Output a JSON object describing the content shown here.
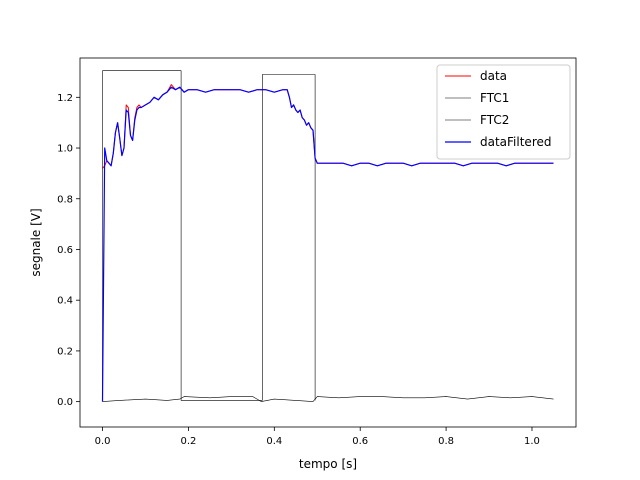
{
  "chart_data": {
    "type": "line",
    "xlabel": "tempo [s]",
    "ylabel": "segnale [V]",
    "xlim": [
      -0.0525,
      1.1025
    ],
    "ylim": [
      -0.1,
      1.355
    ],
    "xticks": [
      0.0,
      0.2,
      0.4,
      0.6,
      0.8,
      1.0
    ],
    "xtick_labels": [
      "0.0",
      "0.2",
      "0.4",
      "0.6",
      "0.8",
      "1.0"
    ],
    "yticks": [
      0.0,
      0.2,
      0.4,
      0.6,
      0.8,
      1.0,
      1.2
    ],
    "ytick_labels": [
      "0.0",
      "0.2",
      "0.4",
      "0.6",
      "0.8",
      "1.0",
      "1.2"
    ],
    "grid": false,
    "legend_position": "top-right",
    "series": [
      {
        "name": "data",
        "color": "#ff0000",
        "width": 1,
        "x": [
          0.0,
          0.005,
          0.01,
          0.015,
          0.02,
          0.025,
          0.03,
          0.035,
          0.04,
          0.045,
          0.05,
          0.055,
          0.06,
          0.065,
          0.07,
          0.075,
          0.08,
          0.085,
          0.09,
          0.1,
          0.11,
          0.12,
          0.13,
          0.14,
          0.15,
          0.16,
          0.17,
          0.18,
          0.19,
          0.2,
          0.22,
          0.24,
          0.26,
          0.28,
          0.3,
          0.32,
          0.34,
          0.36,
          0.38,
          0.4,
          0.42,
          0.43,
          0.435,
          0.44,
          0.445,
          0.45,
          0.455,
          0.46,
          0.465,
          0.47,
          0.475,
          0.48,
          0.485,
          0.49,
          0.495,
          0.5,
          0.52,
          0.54,
          0.56,
          0.58,
          0.6,
          0.62,
          0.64,
          0.66,
          0.68,
          0.7,
          0.72,
          0.74,
          0.76,
          0.78,
          0.8,
          0.82,
          0.84,
          0.86,
          0.88,
          0.9,
          0.92,
          0.94,
          0.96,
          0.98,
          1.0,
          1.02,
          1.04,
          1.05
        ],
        "y": [
          0.92,
          0.93,
          0.95,
          0.94,
          0.93,
          0.98,
          1.06,
          1.1,
          1.04,
          0.97,
          1.0,
          1.17,
          1.16,
          1.05,
          1.03,
          1.12,
          1.16,
          1.17,
          1.16,
          1.17,
          1.18,
          1.2,
          1.19,
          1.21,
          1.22,
          1.25,
          1.23,
          1.24,
          1.22,
          1.23,
          1.23,
          1.22,
          1.23,
          1.23,
          1.23,
          1.23,
          1.22,
          1.23,
          1.23,
          1.22,
          1.23,
          1.23,
          1.2,
          1.16,
          1.17,
          1.15,
          1.14,
          1.15,
          1.12,
          1.11,
          1.09,
          1.1,
          1.08,
          1.07,
          0.96,
          0.94,
          0.94,
          0.94,
          0.94,
          0.93,
          0.94,
          0.94,
          0.93,
          0.94,
          0.94,
          0.94,
          0.93,
          0.94,
          0.94,
          0.94,
          0.94,
          0.94,
          0.93,
          0.94,
          0.94,
          0.94,
          0.94,
          0.93,
          0.94,
          0.94,
          0.94,
          0.94,
          0.94,
          0.94
        ]
      },
      {
        "name": "FTC1",
        "color": "#000000",
        "width": 0.6,
        "x": [
          0.0,
          0.0,
          0.183,
          0.183,
          0.372,
          0.372,
          0.495,
          0.495
        ],
        "y": [
          0.005,
          1.305,
          1.305,
          0.005,
          0.005,
          1.29,
          1.29,
          0.005
        ]
      },
      {
        "name": "FTC2",
        "color": "#000000",
        "width": 0.6,
        "x": [
          0.0,
          0.04,
          0.1,
          0.15,
          0.18,
          0.19,
          0.25,
          0.3,
          0.35,
          0.37,
          0.4,
          0.45,
          0.49,
          0.5,
          0.55,
          0.6,
          0.65,
          0.7,
          0.75,
          0.8,
          0.85,
          0.9,
          0.95,
          1.0,
          1.05
        ],
        "y": [
          0.0,
          0.005,
          0.01,
          0.005,
          0.01,
          0.02,
          0.015,
          0.02,
          0.02,
          0.0,
          0.01,
          0.005,
          0.0,
          0.02,
          0.015,
          0.02,
          0.02,
          0.015,
          0.015,
          0.02,
          0.01,
          0.02,
          0.015,
          0.02,
          0.01
        ]
      },
      {
        "name": "dataFiltered",
        "color": "#0000ff",
        "width": 1.2,
        "x": [
          0.0,
          0.005,
          0.01,
          0.015,
          0.02,
          0.025,
          0.03,
          0.035,
          0.04,
          0.045,
          0.05,
          0.055,
          0.06,
          0.065,
          0.07,
          0.075,
          0.08,
          0.085,
          0.09,
          0.1,
          0.11,
          0.12,
          0.13,
          0.14,
          0.15,
          0.16,
          0.17,
          0.18,
          0.19,
          0.2,
          0.22,
          0.24,
          0.26,
          0.28,
          0.3,
          0.32,
          0.34,
          0.36,
          0.38,
          0.4,
          0.42,
          0.43,
          0.435,
          0.44,
          0.445,
          0.45,
          0.455,
          0.46,
          0.465,
          0.47,
          0.475,
          0.48,
          0.485,
          0.49,
          0.495,
          0.5,
          0.52,
          0.54,
          0.56,
          0.58,
          0.6,
          0.62,
          0.64,
          0.66,
          0.68,
          0.7,
          0.72,
          0.74,
          0.76,
          0.78,
          0.8,
          0.82,
          0.84,
          0.86,
          0.88,
          0.9,
          0.92,
          0.94,
          0.96,
          0.98,
          1.0,
          1.02,
          1.04,
          1.05
        ],
        "y": [
          0.0,
          1.0,
          0.95,
          0.94,
          0.93,
          0.98,
          1.06,
          1.1,
          1.04,
          0.97,
          1.0,
          1.15,
          1.14,
          1.05,
          1.03,
          1.11,
          1.15,
          1.16,
          1.16,
          1.17,
          1.18,
          1.2,
          1.19,
          1.21,
          1.22,
          1.24,
          1.23,
          1.24,
          1.22,
          1.23,
          1.23,
          1.22,
          1.23,
          1.23,
          1.23,
          1.23,
          1.22,
          1.23,
          1.23,
          1.22,
          1.23,
          1.23,
          1.2,
          1.16,
          1.17,
          1.15,
          1.14,
          1.15,
          1.12,
          1.11,
          1.09,
          1.1,
          1.08,
          1.07,
          0.96,
          0.94,
          0.94,
          0.94,
          0.94,
          0.93,
          0.94,
          0.94,
          0.93,
          0.94,
          0.94,
          0.94,
          0.93,
          0.94,
          0.94,
          0.94,
          0.94,
          0.94,
          0.93,
          0.94,
          0.94,
          0.94,
          0.94,
          0.93,
          0.94,
          0.94,
          0.94,
          0.94,
          0.94,
          0.94
        ]
      }
    ]
  }
}
